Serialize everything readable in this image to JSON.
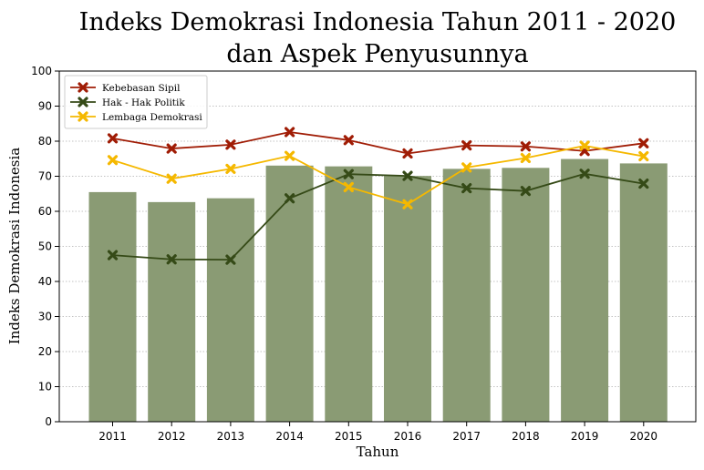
{
  "chart_data": {
    "type": "bar",
    "title_line1": "Indeks Demokrasi Indonesia Tahun 2011 - 2020",
    "title_line2": "dan Aspek Penyusunnya",
    "xlabel": "Tahun",
    "ylabel": "Indeks Demokrasi Indonesia",
    "ylim": [
      0,
      100
    ],
    "yticks": [
      0,
      10,
      20,
      30,
      40,
      50,
      60,
      70,
      80,
      90,
      100
    ],
    "grid": "horizontal-dotted",
    "legend_position": "top-left",
    "categories": [
      "2011",
      "2012",
      "2013",
      "2014",
      "2015",
      "2016",
      "2017",
      "2018",
      "2019",
      "2020"
    ],
    "bars": {
      "color": "#8a9b74",
      "values": [
        65.48,
        62.63,
        63.72,
        73.04,
        72.82,
        70.09,
        72.11,
        72.39,
        74.92,
        73.66
      ]
    },
    "series": [
      {
        "name": "Kebebasan Sipil",
        "type": "line",
        "color": "#a01c05",
        "values": [
          80.8,
          77.9,
          79.0,
          82.6,
          80.3,
          76.5,
          78.8,
          78.5,
          77.2,
          79.4
        ]
      },
      {
        "name": "Hak - Hak Politik",
        "type": "line",
        "color": "#354a17",
        "values": [
          47.5,
          46.3,
          46.2,
          63.7,
          70.6,
          70.1,
          66.6,
          65.8,
          70.7,
          67.9
        ]
      },
      {
        "name": "Lembaga Demokrasi",
        "type": "line",
        "color": "#f5b800",
        "values": [
          74.6,
          69.3,
          72.1,
          75.8,
          66.9,
          62.0,
          72.5,
          75.2,
          78.7,
          75.7
        ]
      }
    ]
  }
}
